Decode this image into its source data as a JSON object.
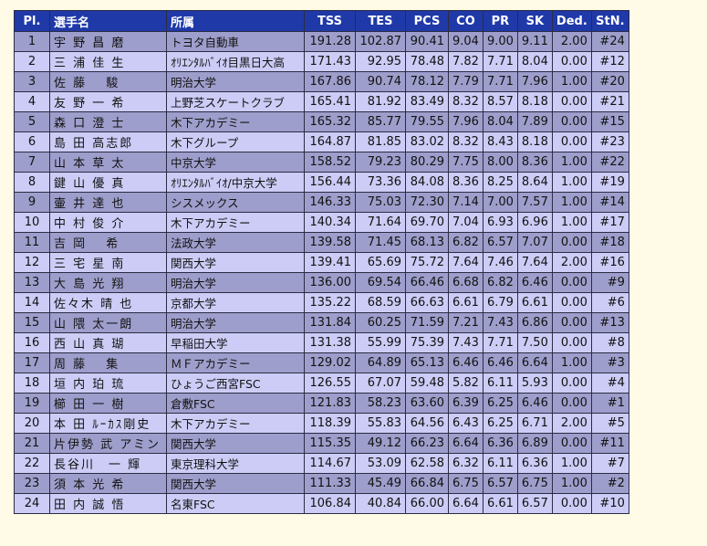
{
  "headers": [
    "Pl.",
    "選手名",
    "所属",
    "TSS",
    "TES",
    "PCS",
    "CO",
    "PR",
    "SK",
    "Ded.",
    "StN."
  ],
  "rows": [
    [
      "1",
      "宇 野 昌 磨",
      "トヨタ自動車",
      "191.28",
      "102.87",
      "90.41",
      "9.04",
      "9.00",
      "9.11",
      "2.00",
      "#24"
    ],
    [
      "2",
      "三 浦 佳 生",
      "ｵﾘｴﾝﾀﾙﾊﾞｲｵ目黒日大高",
      "171.43",
      "92.95",
      "78.48",
      "7.82",
      "7.71",
      "8.04",
      "0.00",
      "#12"
    ],
    [
      "3",
      "佐 藤　 駿",
      "明治大学",
      "167.86",
      "90.74",
      "78.12",
      "7.79",
      "7.71",
      "7.96",
      "1.00",
      "#20"
    ],
    [
      "4",
      "友 野 一 希",
      "上野芝スケートクラブ",
      "165.41",
      "81.92",
      "83.49",
      "8.32",
      "8.57",
      "8.18",
      "0.00",
      "#21"
    ],
    [
      "5",
      "森 口 澄 士",
      "木下アカデミー",
      "165.32",
      "85.77",
      "79.55",
      "7.96",
      "8.04",
      "7.89",
      "0.00",
      "#15"
    ],
    [
      "6",
      "島 田 高志郎",
      "木下グループ",
      "164.87",
      "81.85",
      "83.02",
      "8.32",
      "8.43",
      "8.18",
      "0.00",
      "#23"
    ],
    [
      "7",
      "山 本 草 太",
      "中京大学",
      "158.52",
      "79.23",
      "80.29",
      "7.75",
      "8.00",
      "8.36",
      "1.00",
      "#22"
    ],
    [
      "8",
      "鍵 山 優 真",
      "ｵﾘｴﾝﾀﾙﾊﾞｲｵ/中京大学",
      "156.44",
      "73.36",
      "84.08",
      "8.36",
      "8.25",
      "8.64",
      "1.00",
      "#19"
    ],
    [
      "9",
      "壷 井 達 也",
      "シスメックス",
      "146.33",
      "75.03",
      "72.30",
      "7.14",
      "7.00",
      "7.57",
      "1.00",
      "#14"
    ],
    [
      "10",
      "中 村 俊 介",
      "木下アカデミー",
      "140.34",
      "71.64",
      "69.70",
      "7.04",
      "6.93",
      "6.96",
      "1.00",
      "#17"
    ],
    [
      "11",
      "吉 岡　 希",
      "法政大学",
      "139.58",
      "71.45",
      "68.13",
      "6.82",
      "6.57",
      "7.07",
      "0.00",
      "#18"
    ],
    [
      "12",
      "三 宅 星 南",
      "関西大学",
      "139.41",
      "65.69",
      "75.72",
      "7.64",
      "7.46",
      "7.64",
      "2.00",
      "#16"
    ],
    [
      "13",
      "大 島 光 翔",
      "明治大学",
      "136.00",
      "69.54",
      "66.46",
      "6.68",
      "6.82",
      "6.46",
      "0.00",
      "#9"
    ],
    [
      "14",
      "佐々木 晴 也",
      "京都大学",
      "135.22",
      "68.59",
      "66.63",
      "6.61",
      "6.79",
      "6.61",
      "0.00",
      "#6"
    ],
    [
      "15",
      "山 隈 太一朗",
      "明治大学",
      "131.84",
      "60.25",
      "71.59",
      "7.21",
      "7.43",
      "6.86",
      "0.00",
      "#13"
    ],
    [
      "16",
      "西 山 真 瑚",
      "早稲田大学",
      "131.38",
      "55.99",
      "75.39",
      "7.43",
      "7.71",
      "7.50",
      "0.00",
      "#8"
    ],
    [
      "17",
      "周 藤　 集",
      "ＭＦアカデミー",
      "129.02",
      "64.89",
      "65.13",
      "6.46",
      "6.46",
      "6.64",
      "1.00",
      "#3"
    ],
    [
      "18",
      "垣 内 珀 琉",
      "ひょうご西宮FSC",
      "126.55",
      "67.07",
      "59.48",
      "5.82",
      "6.11",
      "5.93",
      "0.00",
      "#4"
    ],
    [
      "19",
      "櫛 田 一 樹",
      "倉敷FSC",
      "121.83",
      "58.23",
      "63.60",
      "6.39",
      "6.25",
      "6.46",
      "0.00",
      "#1"
    ],
    [
      "20",
      "本 田 ﾙｰｶｽ剛史",
      "木下アカデミー",
      "118.39",
      "55.83",
      "64.56",
      "6.43",
      "6.25",
      "6.71",
      "2.00",
      "#5"
    ],
    [
      "21",
      "片伊勢 武 アミン",
      "関西大学",
      "115.35",
      "49.12",
      "66.23",
      "6.64",
      "6.36",
      "6.89",
      "0.00",
      "#11"
    ],
    [
      "22",
      "長谷川　一 輝",
      "東京理科大学",
      "114.67",
      "53.09",
      "62.58",
      "6.32",
      "6.11",
      "6.36",
      "1.00",
      "#7"
    ],
    [
      "23",
      "須 本 光 希",
      "関西大学",
      "111.33",
      "45.49",
      "66.84",
      "6.75",
      "6.57",
      "6.75",
      "1.00",
      "#2"
    ],
    [
      "24",
      "田 内 誠 悟",
      "名東FSC",
      "106.84",
      "40.84",
      "66.00",
      "6.64",
      "6.61",
      "6.57",
      "0.00",
      "#10"
    ]
  ]
}
